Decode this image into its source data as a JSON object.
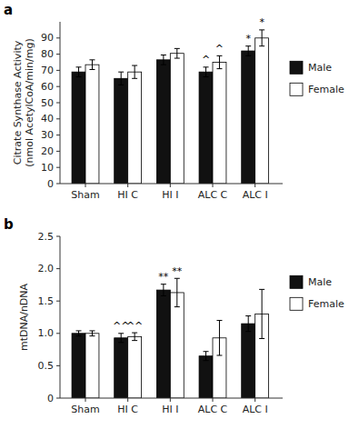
{
  "chart_data": [
    {
      "type": "bar",
      "title": "a",
      "categories": [
        "Sham",
        "HI C",
        "HI I",
        "ALC C",
        "ALC I"
      ],
      "series": [
        {
          "name": "Male",
          "color": "#111111",
          "values": [
            69,
            65,
            76.5,
            69,
            82
          ],
          "errors": [
            3,
            4,
            3,
            3,
            3
          ],
          "annotations": [
            null,
            null,
            null,
            "^",
            "*"
          ]
        },
        {
          "name": "Female",
          "color": "#ffffff",
          "values": [
            73.5,
            69,
            80.5,
            75,
            90
          ],
          "errors": [
            3,
            4,
            3,
            4,
            5
          ],
          "annotations": [
            null,
            null,
            null,
            "^",
            "*"
          ]
        }
      ],
      "ylabel": "Citrate Synthase Activity\n(nmol AcetylCoA/min/mg)",
      "ylim": [
        0,
        100
      ],
      "yticks": [
        0,
        10,
        20,
        30,
        40,
        50,
        60,
        70,
        80,
        90
      ],
      "grid": false,
      "legend": "right"
    },
    {
      "type": "bar",
      "title": "b",
      "categories": [
        "Sham",
        "HI C",
        "HI I",
        "ALC C",
        "ALC I"
      ],
      "series": [
        {
          "name": "Male",
          "color": "#111111",
          "values": [
            1.0,
            0.93,
            1.67,
            0.65,
            1.15
          ],
          "errors": [
            0.04,
            0.07,
            0.09,
            0.07,
            0.12
          ],
          "annotations": [
            null,
            "^^",
            "**",
            null,
            null
          ]
        },
        {
          "name": "Female",
          "color": "#ffffff",
          "values": [
            1.0,
            0.95,
            1.63,
            0.93,
            1.3
          ],
          "errors": [
            0.04,
            0.06,
            0.22,
            0.27,
            0.38
          ],
          "annotations": [
            null,
            "^^",
            "**",
            null,
            null
          ]
        }
      ],
      "ylabel": "mtDNA/nDNA",
      "ylim": [
        0,
        2.5
      ],
      "yticks": [
        0,
        0.5,
        {
          "value": 1,
          "label": "1.0"
        },
        1.5,
        {
          "value": 2,
          "label": "2.0"
        },
        2.5
      ],
      "grid": false,
      "legend": "right"
    }
  ]
}
